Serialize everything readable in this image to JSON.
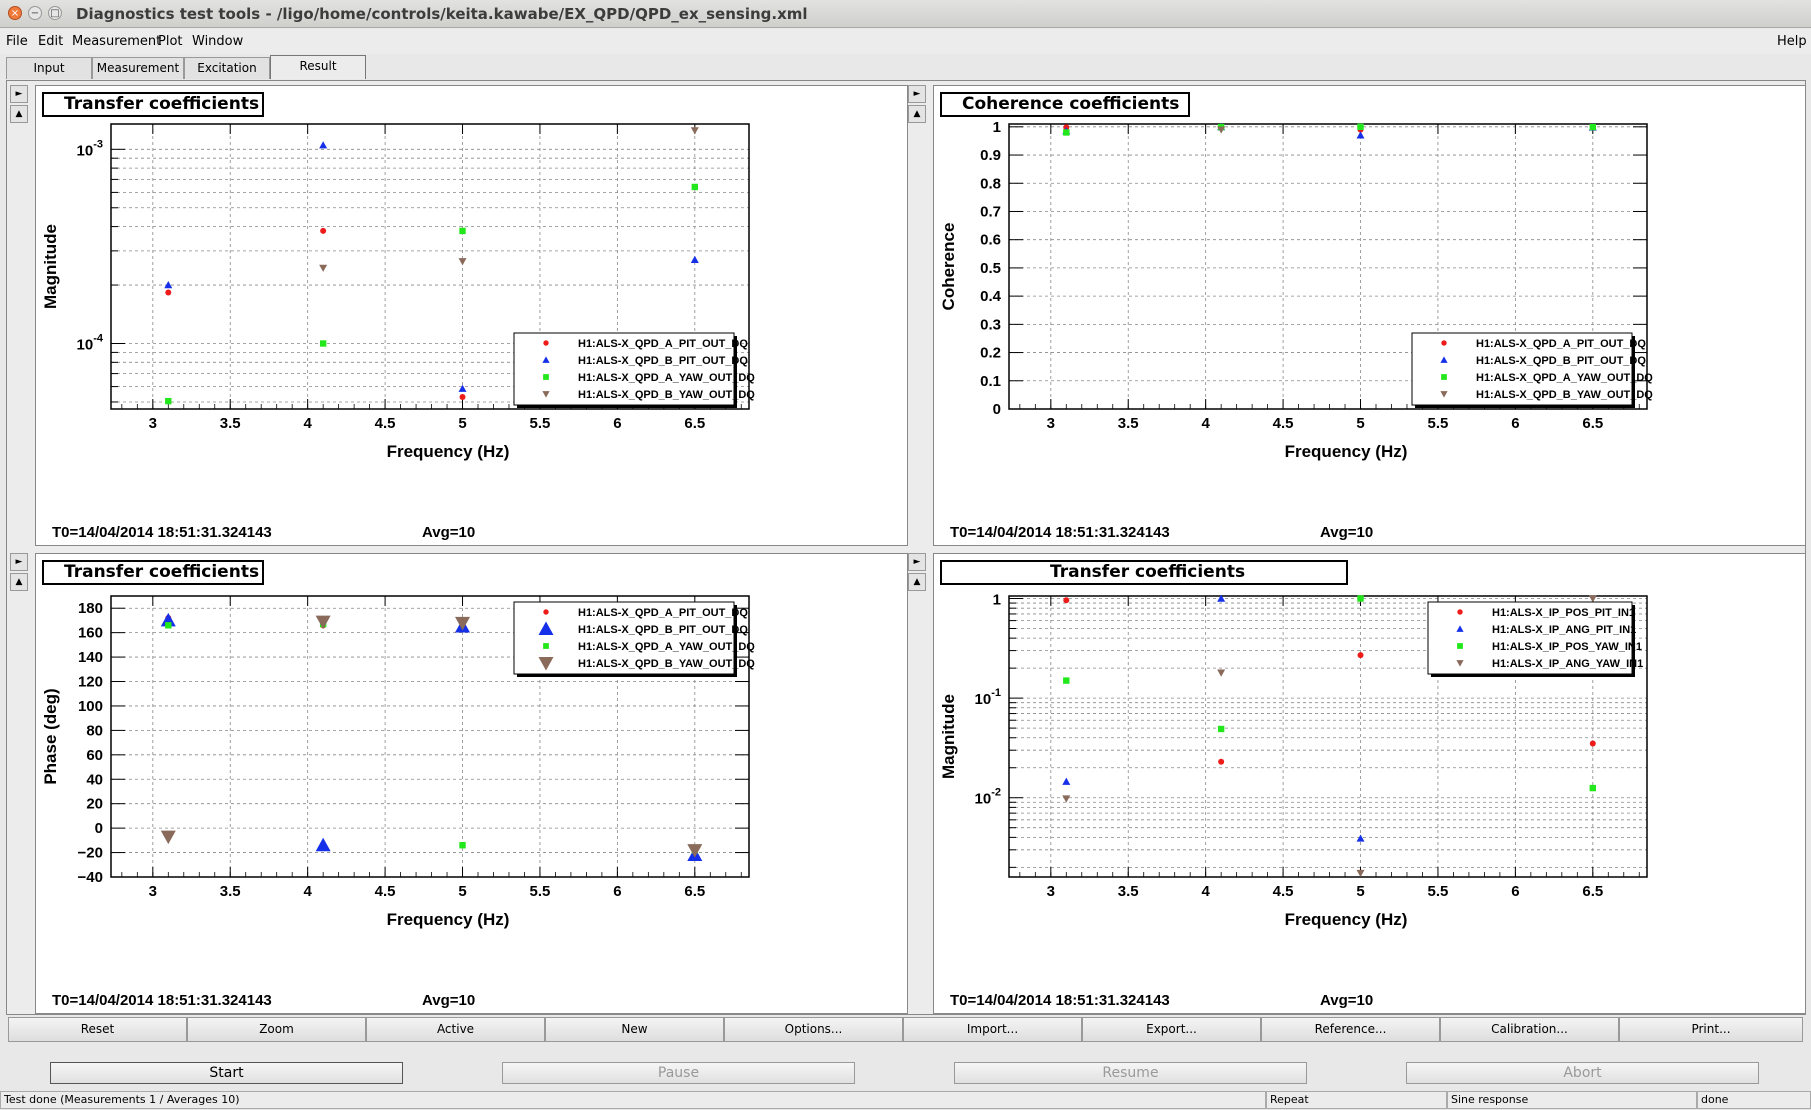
{
  "window": {
    "title": "Diagnostics test tools - /ligo/home/controls/keita.kawabe/EX_QPD/QPD_ex_sensing.xml",
    "close_glyph": "×",
    "minimize_glyph": "−",
    "maximize_glyph": "□"
  },
  "menu": {
    "items": [
      "File",
      "Edit",
      "Measurement",
      "Plot",
      "Window"
    ],
    "help": "Help"
  },
  "tabs": [
    "Input",
    "Measurement",
    "Excitation",
    "Result"
  ],
  "active_tab": "Result",
  "panel_nav": {
    "right": "►",
    "up": "▲"
  },
  "colors": {
    "series": [
      "#ee1b1b",
      "#1530e8",
      "#22e81b",
      "#8a6a5a"
    ],
    "frame": "#000000",
    "grid": "#888888"
  },
  "chart_data": [
    {
      "type": "scatter",
      "title": "Transfer coefficients",
      "xlabel": "Frequency (Hz)",
      "ylabel": "Magnitude",
      "yscale": "log",
      "xlim": [
        2.73,
        6.85
      ],
      "ylim": [
        4.6e-05,
        0.00135
      ],
      "xticks": [
        3,
        3.5,
        4,
        4.5,
        5,
        5.5,
        6,
        6.5
      ],
      "xticklabels": [
        "3",
        "3.5",
        "4",
        "4.5",
        "5",
        "5.5",
        "6",
        "6.5"
      ],
      "yticks": [
        0.0001,
        0.001
      ],
      "yticklabels": [
        [
          "10",
          "-4"
        ],
        [
          "10",
          "-3"
        ]
      ],
      "grid": true,
      "legend_position": "bottom-right",
      "legend_marker_size": "small",
      "series": [
        {
          "name": "H1:ALS-X_QPD_A_PIT_OUT_DQ",
          "marker": "circle",
          "x": [
            3.1,
            4.1,
            5,
            6.5
          ],
          "y": [
            0.000183,
            0.00038,
            5.3e-05,
            null
          ]
        },
        {
          "name": "H1:ALS-X_QPD_B_PIT_OUT_DQ",
          "marker": "triangle-up",
          "x": [
            3.1,
            4.1,
            5,
            6.5
          ],
          "y": [
            0.0002,
            0.00105,
            5.85e-05,
            0.00027
          ]
        },
        {
          "name": "H1:ALS-X_QPD_A_YAW_OUT_DQ",
          "marker": "square",
          "x": [
            3.1,
            4.1,
            5,
            6.5
          ],
          "y": [
            5.05e-05,
            0.0001,
            0.00038,
            0.00064
          ]
        },
        {
          "name": "H1:ALS-X_QPD_B_YAW_OUT_DQ",
          "marker": "triangle-down",
          "x": [
            3.1,
            4.1,
            5,
            6.5
          ],
          "y": [
            null,
            0.000245,
            0.000265,
            0.00125
          ]
        }
      ],
      "footer": {
        "t0": "T0=14/04/2014 18:51:31.324143",
        "avg": "Avg=10"
      }
    },
    {
      "type": "scatter",
      "title": "Coherence coefficients",
      "xlabel": "Frequency (Hz)",
      "ylabel": "Coherence",
      "yscale": "linear",
      "xlim": [
        2.73,
        6.85
      ],
      "ylim": [
        0,
        1.01
      ],
      "xticks": [
        3,
        3.5,
        4,
        4.5,
        5,
        5.5,
        6,
        6.5
      ],
      "xticklabels": [
        "3",
        "3.5",
        "4",
        "4.5",
        "5",
        "5.5",
        "6",
        "6.5"
      ],
      "yticks": [
        0,
        0.1,
        0.2,
        0.3,
        0.4,
        0.5,
        0.6,
        0.7,
        0.8,
        0.9,
        1
      ],
      "yticklabels": [
        "0",
        "0.1",
        "0.2",
        "0.3",
        "0.4",
        "0.5",
        "0.6",
        "0.7",
        "0.8",
        "0.9",
        "1"
      ],
      "grid": true,
      "legend_position": "bottom-right",
      "legend_marker_size": "small",
      "series": [
        {
          "name": "H1:ALS-X_QPD_A_PIT_OUT_DQ",
          "marker": "circle",
          "x": [
            3.1,
            4.1,
            5,
            6.5
          ],
          "y": [
            0.998,
            0.999,
            0.99,
            0.999
          ]
        },
        {
          "name": "H1:ALS-X_QPD_B_PIT_OUT_DQ",
          "marker": "triangle-up",
          "x": [
            3.1,
            4.1,
            5,
            6.5
          ],
          "y": [
            0.985,
            0.999,
            0.97,
            0.998
          ]
        },
        {
          "name": "H1:ALS-X_QPD_A_YAW_OUT_DQ",
          "marker": "square",
          "x": [
            3.1,
            4.1,
            5,
            6.5
          ],
          "y": [
            0.98,
            0.999,
            1,
            0.999
          ]
        },
        {
          "name": "H1:ALS-X_QPD_B_YAW_OUT_DQ",
          "marker": "triangle-down",
          "x": [
            3.1,
            4.1,
            5,
            6.5
          ],
          "y": [
            null,
            0.99,
            null,
            null
          ]
        }
      ],
      "footer": {
        "t0": "T0=14/04/2014 18:51:31.324143",
        "avg": "Avg=10"
      }
    },
    {
      "type": "scatter",
      "title": "Transfer coefficients",
      "xlabel": "Frequency (Hz)",
      "ylabel": "Phase (deg)",
      "yscale": "linear",
      "xlim": [
        2.73,
        6.85
      ],
      "ylim": [
        -40,
        190
      ],
      "xticks": [
        3,
        3.5,
        4,
        4.5,
        5,
        5.5,
        6,
        6.5
      ],
      "xticklabels": [
        "3",
        "3.5",
        "4",
        "4.5",
        "5",
        "5.5",
        "6",
        "6.5"
      ],
      "yticks": [
        -40,
        -20,
        0,
        20,
        40,
        60,
        80,
        100,
        120,
        140,
        160,
        180
      ],
      "yticklabels": [
        "−40",
        "−20",
        "0",
        "20",
        "40",
        "60",
        "80",
        "100",
        "120",
        "140",
        "160",
        "180"
      ],
      "grid": true,
      "legend_position": "top-right",
      "legend_marker_size": "mixed",
      "series": [
        {
          "name": "H1:ALS-X_QPD_A_PIT_OUT_DQ",
          "marker": "circle",
          "size": "small",
          "x": [
            3.1,
            4.1,
            5
          ],
          "y": [
            172,
            166,
            165
          ]
        },
        {
          "name": "H1:ALS-X_QPD_B_PIT_OUT_DQ",
          "marker": "triangle-up",
          "size": "large",
          "x": [
            3.1,
            4.1,
            5,
            6.5
          ],
          "y": [
            170,
            -14,
            165,
            -22
          ]
        },
        {
          "name": "H1:ALS-X_QPD_A_YAW_OUT_DQ",
          "marker": "square",
          "size": "small",
          "x": [
            3.1,
            4.1,
            5,
            6.5
          ],
          "y": [
            166,
            167,
            -14,
            -18
          ]
        },
        {
          "name": "H1:ALS-X_QPD_B_YAW_OUT_DQ",
          "marker": "triangle-down",
          "size": "large",
          "x": [
            3.1,
            4.1,
            5,
            6.5
          ],
          "y": [
            -7,
            169,
            168,
            -18
          ]
        }
      ],
      "footer": {
        "t0": "T0=14/04/2014 18:51:31.324143",
        "avg": "Avg=10"
      }
    },
    {
      "type": "scatter",
      "title": "Transfer coefficients",
      "xlabel": "Frequency (Hz)",
      "ylabel": "Magnitude",
      "yscale": "log",
      "xlim": [
        2.73,
        6.85
      ],
      "ylim": [
        0.0016,
        1.06
      ],
      "xticks": [
        3,
        3.5,
        4,
        4.5,
        5,
        5.5,
        6,
        6.5
      ],
      "xticklabels": [
        "3",
        "3.5",
        "4",
        "4.5",
        "5",
        "5.5",
        "6",
        "6.5"
      ],
      "yticks": [
        0.01,
        0.1,
        1
      ],
      "yticklabels": [
        [
          "10",
          "-2"
        ],
        [
          "10",
          "-1"
        ],
        [
          "1",
          ""
        ]
      ],
      "grid": true,
      "legend_position": "top-right",
      "legend_marker_size": "small",
      "series": [
        {
          "name": "H1:ALS-X_IP_POS_PIT_IN1",
          "marker": "circle",
          "x": [
            3.1,
            4.1,
            5,
            6.5
          ],
          "y": [
            0.96,
            0.023,
            0.27,
            0.035
          ]
        },
        {
          "name": "H1:ALS-X_IP_ANG_PIT_IN1",
          "marker": "triangle-up",
          "x": [
            3.1,
            4.1,
            5,
            6.5
          ],
          "y": [
            0.0145,
            1.0,
            0.0039,
            null
          ]
        },
        {
          "name": "H1:ALS-X_IP_POS_YAW_IN1",
          "marker": "square",
          "x": [
            3.1,
            4.1,
            5,
            6.5
          ],
          "y": [
            0.15,
            0.049,
            1.0,
            0.0125
          ]
        },
        {
          "name": "H1:ALS-X_IP_ANG_YAW_IN1",
          "marker": "triangle-down",
          "x": [
            3.1,
            4.1,
            5,
            6.5
          ],
          "y": [
            0.0098,
            0.18,
            0.00175,
            1.0
          ]
        }
      ],
      "footer": {
        "t0": "T0=14/04/2014 18:51:31.324143",
        "avg": "Avg=10"
      }
    }
  ],
  "toolbar": [
    "Reset",
    "Zoom",
    "Active",
    "New",
    "Options...",
    "Import...",
    "Export...",
    "Reference...",
    "Calibration...",
    "Print..."
  ],
  "controls": [
    {
      "label": "Start",
      "enabled": true
    },
    {
      "label": "Pause",
      "enabled": false
    },
    {
      "label": "Resume",
      "enabled": false
    },
    {
      "label": "Abort",
      "enabled": false
    }
  ],
  "status": {
    "message": "Test done (Measurements 1 / Averages 10)",
    "mode": "Repeat",
    "type": "Sine response",
    "state": "done"
  }
}
